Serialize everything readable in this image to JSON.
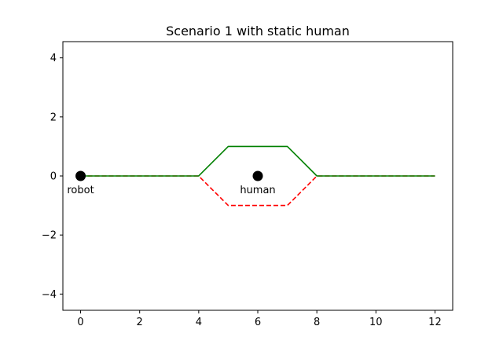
{
  "chart_data": {
    "type": "line",
    "title": "Scenario 1 with static human",
    "xlabel": "",
    "ylabel": "",
    "xlim": [
      -0.6,
      12.6
    ],
    "ylim": [
      -4.55,
      4.55
    ],
    "xticks": [
      0,
      2,
      4,
      6,
      8,
      10,
      12
    ],
    "yticks": [
      -4,
      -2,
      0,
      2,
      4
    ],
    "xtick_labels": [
      "0",
      "2",
      "4",
      "6",
      "8",
      "10",
      "12"
    ],
    "ytick_labels": [
      "−4",
      "−2",
      "0",
      "2",
      "4"
    ],
    "grid": false,
    "series": [
      {
        "color": "#ff0000",
        "linestyle": "dashed",
        "x": [
          0,
          4,
          5,
          7,
          8,
          12
        ],
        "y": [
          0,
          0,
          -1,
          -1,
          0,
          0
        ]
      },
      {
        "color": "#008000",
        "linestyle": "solid",
        "x": [
          0,
          4,
          5,
          7,
          8,
          12
        ],
        "y": [
          0,
          0,
          1,
          1,
          0,
          0
        ]
      }
    ],
    "points": [
      {
        "label": "robot",
        "x": 0,
        "y": 0,
        "color": "#000000"
      },
      {
        "label": "human",
        "x": 6,
        "y": 0,
        "color": "#000000"
      }
    ]
  }
}
